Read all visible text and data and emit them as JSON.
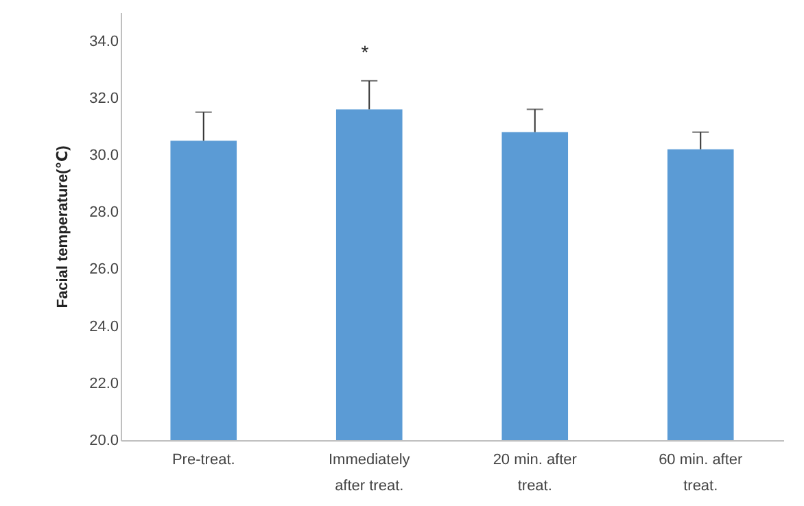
{
  "chart_data": {
    "type": "bar",
    "ylabel": "Facial temperature(℃)",
    "categories": [
      "Pre-treat.",
      "Immediately after treat.",
      "20 min. after treat.",
      "60 min. after treat."
    ],
    "values": [
      30.5,
      31.6,
      30.8,
      30.2
    ],
    "errors": [
      [
        30.5,
        31.5
      ],
      [
        31.6,
        32.6
      ],
      [
        30.8,
        31.6
      ],
      [
        30.2,
        30.8
      ]
    ],
    "color": "#5b9bd5",
    "ylim": [
      20,
      35
    ],
    "yticks": [
      {
        "value": 20,
        "label": "20.0"
      },
      {
        "value": 22,
        "label": "22.0"
      },
      {
        "value": 24,
        "label": "24.0"
      },
      {
        "value": 26,
        "label": "26.0"
      },
      {
        "value": 28,
        "label": "28.0"
      },
      {
        "value": 30,
        "label": "30.0"
      },
      {
        "value": 32,
        "label": "32.0"
      },
      {
        "value": 34,
        "label": "34.0"
      }
    ],
    "annotations": [
      "*"
    ],
    "grid": false
  }
}
